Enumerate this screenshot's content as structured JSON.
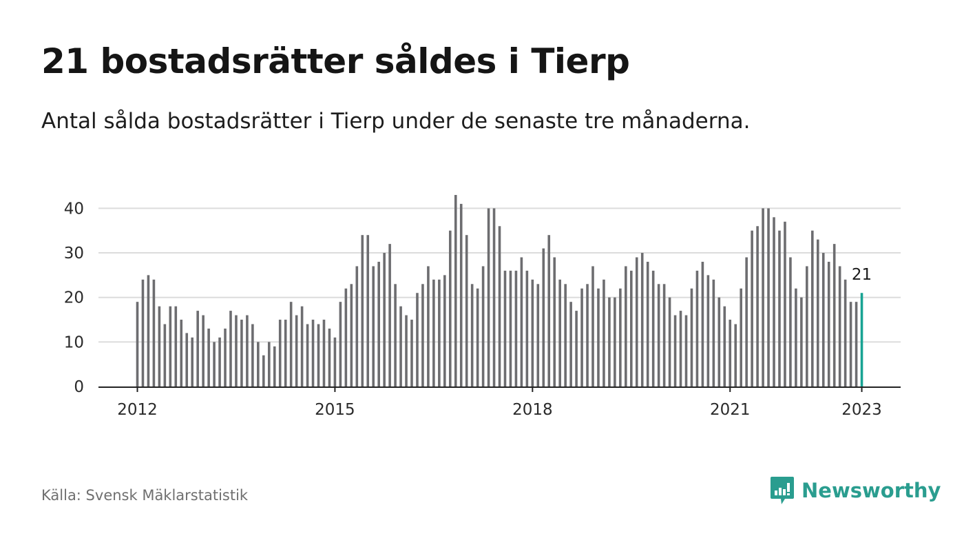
{
  "title": "21 bostadsrätter såldes i Tierp",
  "subtitle": "Antal sålda bostadsrätter i Tierp under de senaste tre månaderna.",
  "source": "Källa: Svensk Mäklarstatistik",
  "logo": {
    "text": "Newsworthy",
    "icon": "bar-chart-speech-bubble-icon"
  },
  "colors": {
    "bar": "#6d6d70",
    "highlight": "#18a393",
    "grid": "#dcdcdc",
    "axis": "#222222",
    "brand": "#2a9d8f"
  },
  "chart_data": {
    "type": "bar",
    "title": "",
    "xlabel": "",
    "ylabel": "",
    "ylim": [
      0,
      43
    ],
    "yticks": [
      0,
      10,
      20,
      30,
      40
    ],
    "xticks": [
      {
        "label": "2012",
        "index": 0
      },
      {
        "label": "2015",
        "index": 36
      },
      {
        "label": "2018",
        "index": 72
      },
      {
        "label": "2021",
        "index": 108
      },
      {
        "label": "2023",
        "index": 132
      }
    ],
    "start": "2012-01",
    "end": "2023-01",
    "grid": true,
    "annotation": {
      "label": "21",
      "index": 132
    },
    "values": [
      19,
      24,
      25,
      24,
      18,
      14,
      18,
      18,
      15,
      12,
      11,
      17,
      16,
      13,
      10,
      11,
      13,
      17,
      16,
      15,
      16,
      14,
      10,
      7,
      10,
      9,
      15,
      15,
      19,
      16,
      18,
      14,
      15,
      14,
      15,
      13,
      11,
      19,
      22,
      23,
      27,
      34,
      34,
      27,
      28,
      30,
      32,
      23,
      18,
      16,
      15,
      21,
      23,
      27,
      24,
      24,
      25,
      35,
      43,
      41,
      34,
      23,
      22,
      27,
      40,
      40,
      36,
      26,
      26,
      26,
      29,
      26,
      24,
      23,
      31,
      34,
      29,
      24,
      23,
      19,
      17,
      22,
      23,
      27,
      22,
      24,
      20,
      20,
      22,
      27,
      26,
      29,
      30,
      28,
      26,
      23,
      23,
      20,
      16,
      17,
      16,
      22,
      26,
      28,
      25,
      24,
      20,
      18,
      15,
      14,
      22,
      29,
      35,
      36,
      40,
      40,
      38,
      35,
      37,
      29,
      22,
      20,
      27,
      35,
      33,
      30,
      28,
      32,
      27,
      24,
      19,
      19,
      21
    ]
  }
}
